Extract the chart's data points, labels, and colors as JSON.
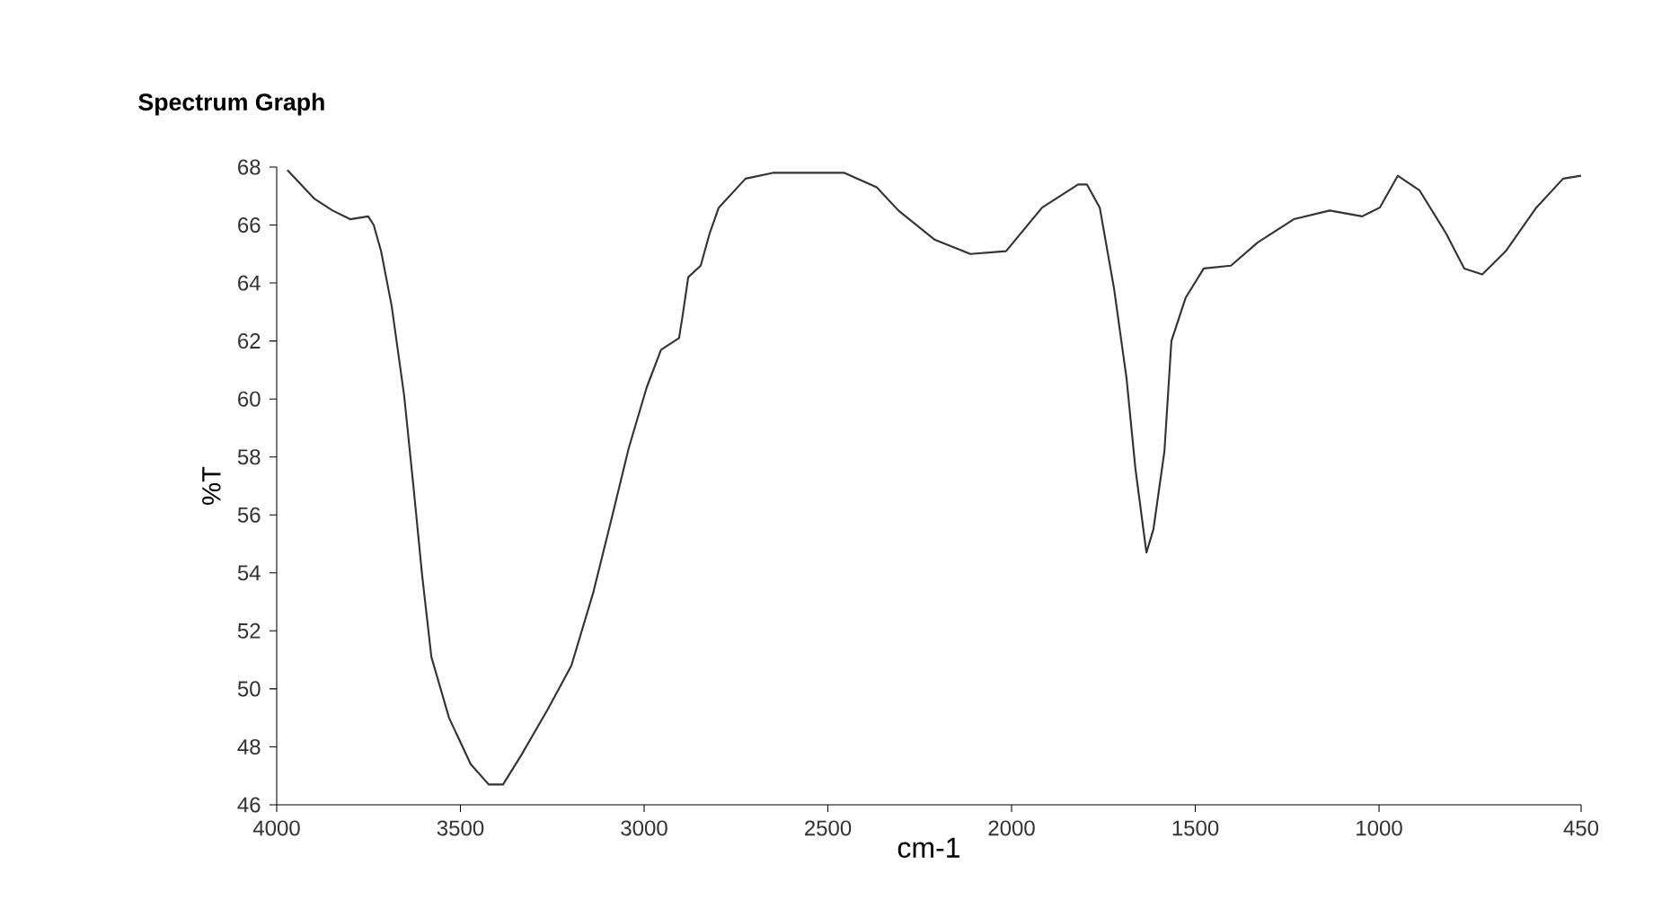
{
  "chart_data": {
    "type": "line",
    "title": "Spectrum Graph",
    "xlabel": "cm-1",
    "ylabel": "%T",
    "xlim": [
      4000,
      450
    ],
    "ylim": [
      46,
      68
    ],
    "xticks": [
      4000,
      3500,
      3000,
      2500,
      2000,
      1500,
      1000,
      450
    ],
    "yticks": [
      46,
      48,
      50,
      52,
      54,
      56,
      58,
      60,
      62,
      64,
      66,
      68
    ],
    "grid": false,
    "x": [
      3971,
      3897,
      3848,
      3800,
      3751,
      3736,
      3716,
      3687,
      3653,
      3628,
      3604,
      3579,
      3531,
      3472,
      3423,
      3384,
      3335,
      3262,
      3198,
      3139,
      3090,
      3042,
      2993,
      2954,
      2905,
      2895,
      2880,
      2846,
      2822,
      2797,
      2724,
      2650,
      2455,
      2367,
      2308,
      2210,
      2112,
      2015,
      1917,
      1819,
      1795,
      1760,
      1721,
      1687,
      1663,
      1633,
      1614,
      1584,
      1565,
      1526,
      1477,
      1403,
      1330,
      1232,
      1134,
      1046,
      998,
      949,
      890,
      817,
      768,
      719,
      655,
      572,
      499,
      450
    ],
    "series": [
      {
        "color": "#333333",
        "values": [
          67.9,
          66.9,
          66.5,
          66.2,
          66.3,
          66.0,
          65.1,
          63.2,
          60.1,
          57.0,
          53.9,
          51.1,
          49.0,
          47.4,
          46.7,
          46.7,
          47.7,
          49.3,
          50.8,
          53.3,
          55.8,
          58.3,
          60.4,
          61.7,
          62.1,
          62.9,
          64.2,
          64.6,
          65.7,
          66.6,
          67.6,
          67.8,
          67.8,
          67.3,
          66.5,
          65.5,
          65.0,
          65.1,
          66.6,
          67.4,
          67.4,
          66.6,
          63.8,
          60.7,
          57.6,
          54.7,
          55.5,
          58.2,
          62.0,
          63.5,
          64.5,
          64.6,
          65.4,
          66.2,
          66.5,
          66.3,
          66.6,
          67.7,
          67.2,
          65.7,
          64.5,
          64.3,
          65.1,
          66.6,
          67.6,
          67.7
        ]
      }
    ]
  }
}
